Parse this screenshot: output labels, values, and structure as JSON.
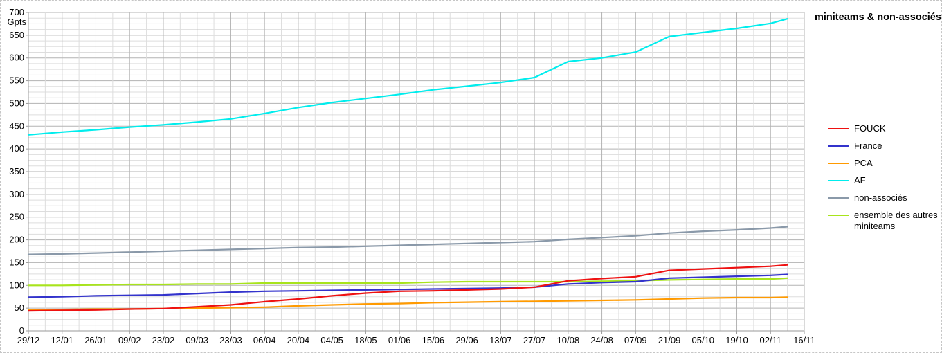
{
  "page": {
    "background": "#ffffff",
    "outer_border_color": "#c6c6c6"
  },
  "chart_data": {
    "type": "line",
    "title": "miniteams & non-associés",
    "y_unit": "Gpts",
    "ylim": [
      0,
      700
    ],
    "y_major_step": 50,
    "y_minor_step": 12.5,
    "x_total_weeks": 46,
    "x_tick_labels": [
      "29/12",
      "12/01",
      "26/01",
      "09/02",
      "23/02",
      "09/03",
      "23/03",
      "06/04",
      "20/04",
      "04/05",
      "18/05",
      "01/06",
      "15/06",
      "29/06",
      "13/07",
      "27/07",
      "10/08",
      "24/08",
      "07/09",
      "21/09",
      "05/10",
      "19/10",
      "02/11",
      "16/11"
    ],
    "grid": {
      "minor_color": "#dddddd",
      "major_color": "#b3b3b3",
      "axis_color": "#9a9a9a"
    },
    "legend_position": "right",
    "weeks": [
      0,
      2,
      4,
      6,
      8,
      10,
      12,
      14,
      16,
      18,
      20,
      22,
      24,
      26,
      28,
      30,
      32,
      34,
      36,
      38,
      40,
      42,
      44,
      45
    ],
    "series": [
      {
        "name": "FOUCK",
        "color": "#ee1111",
        "values": [
          44,
          45,
          46,
          48,
          49,
          53,
          57,
          64,
          70,
          77,
          83,
          87,
          88,
          90,
          92,
          96,
          110,
          115,
          119,
          133,
          136,
          139,
          142,
          145
        ]
      },
      {
        "name": "France",
        "color": "#3333cc",
        "values": [
          74,
          75,
          77,
          78,
          79,
          82,
          85,
          87,
          88,
          89,
          90,
          91,
          92,
          93,
          94,
          96,
          103,
          106,
          108,
          116,
          118,
          120,
          122,
          124
        ]
      },
      {
        "name": "PCA",
        "color": "#ff9a00",
        "values": [
          46,
          47,
          48,
          48,
          49,
          50,
          51,
          52,
          55,
          57,
          59,
          60,
          62,
          63,
          64,
          65,
          66,
          67,
          68,
          70,
          72,
          73,
          73,
          74
        ]
      },
      {
        "name": "AF",
        "color": "#00eded",
        "values": [
          431,
          437,
          442,
          448,
          453,
          459,
          466,
          478,
          491,
          502,
          511,
          520,
          530,
          538,
          546,
          557,
          592,
          600,
          613,
          647,
          656,
          665,
          676,
          686
        ]
      },
      {
        "name": "non-associés",
        "color": "#8a99a9",
        "values": [
          168,
          169,
          171,
          173,
          175,
          177,
          179,
          181,
          183,
          184,
          186,
          188,
          190,
          192,
          194,
          196,
          201,
          205,
          209,
          215,
          219,
          222,
          226,
          229
        ]
      },
      {
        "name": "ensemble des autres miniteams",
        "color": "#a8e41c",
        "values": [
          100,
          100,
          101,
          102,
          102,
          103,
          103,
          105,
          105,
          105,
          105,
          105,
          107,
          108,
          108,
          108,
          108,
          109,
          110,
          112,
          113,
          114,
          114,
          116
        ]
      }
    ]
  }
}
